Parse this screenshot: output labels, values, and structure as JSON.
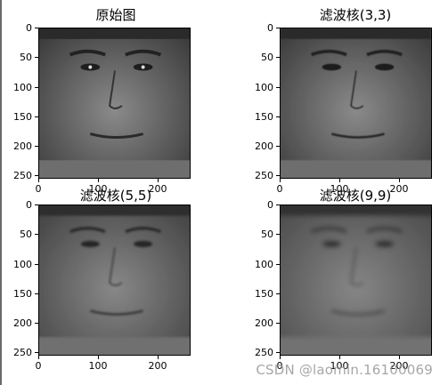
{
  "panels": [
    {
      "title": "原始图"
    },
    {
      "title": "滤波核(3,3)"
    },
    {
      "title": "滤波核(5,5)"
    },
    {
      "title": "滤波核(9,9)"
    }
  ],
  "y_ticks": [
    "0",
    "50",
    "100",
    "150",
    "200",
    "250"
  ],
  "x_ticks": [
    "0",
    "100",
    "200"
  ],
  "watermark": "CSDN @laomin.16100069",
  "colors": {
    "axes": "#000000",
    "background": "#ffffff",
    "watermark": "#969696"
  }
}
